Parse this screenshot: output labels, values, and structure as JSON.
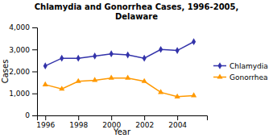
{
  "chart_data": {
    "type": "line",
    "title": "Chlamydia and Gonorrhea Cases, 1996-2005,\nDelaware",
    "x_label": "Year",
    "y_label": "Cases",
    "x": [
      1996,
      1997,
      1998,
      1999,
      2000,
      2001,
      2002,
      2003,
      2004,
      2005
    ],
    "series": [
      {
        "name": "Chlamydia",
        "color": "#3333aa",
        "marker": "diamond",
        "line_style": "solid",
        "values": [
          2250,
          2600,
          2600,
          2700,
          2800,
          2750,
          2600,
          3000,
          2950,
          3350
        ]
      },
      {
        "name": "Gonorrhea",
        "color": "#ff9900",
        "marker": "triangle",
        "line_style": "solid",
        "values": [
          1400,
          1200,
          1550,
          1600,
          1700,
          1700,
          1550,
          1050,
          850,
          900
        ]
      }
    ],
    "xlim": [
      1995.5,
      2005.8
    ],
    "xticks": [
      1996,
      1998,
      2000,
      2002,
      2004
    ],
    "ylim": [
      0,
      4000
    ],
    "yticks": [
      0,
      {
        "value": 1000,
        "label": "1,000"
      },
      {
        "value": 2000,
        "label": "2,000"
      },
      {
        "value": 3000,
        "label": "3,000"
      },
      {
        "value": 4000,
        "label": "4,000"
      }
    ],
    "grid": false,
    "legend": "right"
  }
}
